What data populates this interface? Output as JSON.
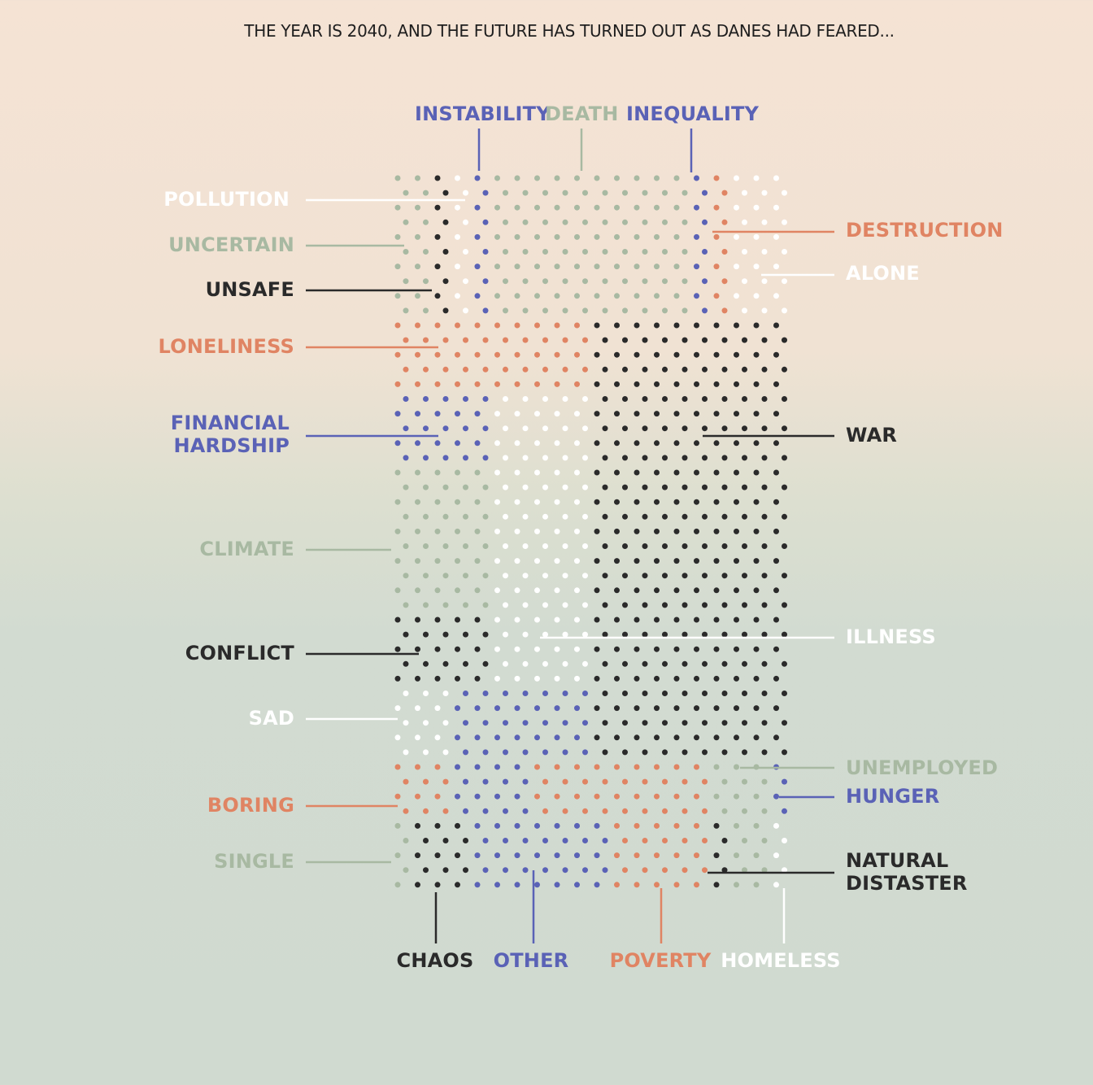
{
  "title": "THE YEAR IS 2040, AND THE FUTURE HAS TURNED OUT AS DANES HAD FEARED...",
  "colors": {
    "blue": "#5a62b6",
    "sage": "#a8b9a2",
    "dark": "#2a2a2a",
    "orange": "#e08463",
    "white": "#ffffff"
  },
  "chart_data": {
    "type": "dot-matrix",
    "title": "THE YEAR IS 2040, AND THE FUTURE HAS TURNED OUT AS DANES HAD FEARED...",
    "grid": {
      "columns": 20,
      "rows": 49,
      "unit": "dot"
    },
    "regions": [
      {
        "name": "UNCERTAIN",
        "color": "sage",
        "cols": [
          0,
          1
        ],
        "rows": [
          0,
          9
        ]
      },
      {
        "name": "UNSAFE",
        "color": "dark",
        "cols": [
          2,
          2
        ],
        "rows": [
          0,
          9
        ]
      },
      {
        "name": "POLLUTION",
        "color": "white",
        "cols": [
          3,
          3
        ],
        "rows": [
          0,
          9
        ]
      },
      {
        "name": "INSTABILITY",
        "color": "blue",
        "cols": [
          4,
          4
        ],
        "rows": [
          0,
          9
        ]
      },
      {
        "name": "DEATH",
        "color": "sage",
        "cols": [
          5,
          14
        ],
        "rows": [
          0,
          9
        ]
      },
      {
        "name": "INEQUALITY",
        "color": "blue",
        "cols": [
          15,
          15
        ],
        "rows": [
          0,
          9
        ]
      },
      {
        "name": "DESTRUCTION",
        "color": "orange",
        "cols": [
          16,
          16
        ],
        "rows": [
          0,
          9
        ]
      },
      {
        "name": "ALONE",
        "color": "white",
        "cols": [
          17,
          19
        ],
        "rows": [
          0,
          9
        ]
      },
      {
        "name": "LONELINESS",
        "color": "orange",
        "cols": [
          0,
          9
        ],
        "rows": [
          10,
          14
        ]
      },
      {
        "name": "FINANCIAL HARDSHIP",
        "color": "blue",
        "cols": [
          0,
          4
        ],
        "rows": [
          15,
          19
        ]
      },
      {
        "name": "CLIMATE",
        "color": "sage",
        "cols": [
          0,
          4
        ],
        "rows": [
          20,
          29
        ]
      },
      {
        "name": "ILLNESS",
        "color": "white",
        "cols": [
          5,
          9
        ],
        "rows": [
          15,
          34
        ]
      },
      {
        "name": "CONFLICT",
        "color": "dark",
        "cols": [
          0,
          4
        ],
        "rows": [
          30,
          34
        ]
      },
      {
        "name": "WAR",
        "color": "dark",
        "cols": [
          10,
          19
        ],
        "rows": [
          10,
          39
        ]
      },
      {
        "name": "SAD",
        "color": "white",
        "cols": [
          0,
          2
        ],
        "rows": [
          35,
          39
        ]
      },
      {
        "name": "OTHER",
        "color": "blue",
        "cols": [
          3,
          9
        ],
        "rows": [
          35,
          39
        ]
      },
      {
        "name": "BORING",
        "color": "orange",
        "cols": [
          0,
          2
        ],
        "rows": [
          40,
          43
        ]
      },
      {
        "name": "OTHER",
        "color": "blue",
        "cols": [
          3,
          6
        ],
        "rows": [
          40,
          43
        ]
      },
      {
        "name": "POVERTY",
        "color": "orange",
        "cols": [
          7,
          15
        ],
        "rows": [
          40,
          43
        ]
      },
      {
        "name": "UNEMPLOYED",
        "color": "sage",
        "cols": [
          16,
          18
        ],
        "rows": [
          40,
          43
        ]
      },
      {
        "name": "HUNGER",
        "color": "blue",
        "cols": [
          19,
          19
        ],
        "rows": [
          40,
          43
        ]
      },
      {
        "name": "SINGLE",
        "color": "sage",
        "cols": [
          0,
          0
        ],
        "rows": [
          44,
          48
        ]
      },
      {
        "name": "CHAOS",
        "color": "dark",
        "cols": [
          1,
          3
        ],
        "rows": [
          44,
          48
        ]
      },
      {
        "name": "OTHER",
        "color": "blue",
        "cols": [
          4,
          10
        ],
        "rows": [
          44,
          48
        ]
      },
      {
        "name": "POVERTY",
        "color": "orange",
        "cols": [
          11,
          15
        ],
        "rows": [
          44,
          48
        ]
      },
      {
        "name": "NATURAL DISTASTER",
        "color": "dark",
        "cols": [
          16,
          16
        ],
        "rows": [
          44,
          48
        ]
      },
      {
        "name": "UNEMPLOYED",
        "color": "sage",
        "cols": [
          17,
          18
        ],
        "rows": [
          44,
          48
        ]
      },
      {
        "name": "HOMELESS",
        "color": "white",
        "cols": [
          19,
          19
        ],
        "rows": [
          44,
          48
        ]
      }
    ],
    "annotations": [
      {
        "label": "INSTABILITY",
        "color": "blue"
      },
      {
        "label": "DEATH",
        "color": "sage"
      },
      {
        "label": "INEQUALITY",
        "color": "blue"
      },
      {
        "label": "POLLUTION",
        "color": "white"
      },
      {
        "label": "UNCERTAIN",
        "color": "sage"
      },
      {
        "label": "UNSAFE",
        "color": "dark"
      },
      {
        "label": "LONELINESS",
        "color": "orange"
      },
      {
        "label": "FINANCIAL HARDSHIP",
        "lines": [
          "FINANCIAL",
          "HARDSHIP"
        ],
        "color": "blue"
      },
      {
        "label": "CLIMATE",
        "color": "sage"
      },
      {
        "label": "CONFLICT",
        "color": "dark"
      },
      {
        "label": "SAD",
        "color": "white"
      },
      {
        "label": "BORING",
        "color": "orange"
      },
      {
        "label": "SINGLE",
        "color": "sage"
      },
      {
        "label": "DESTRUCTION",
        "color": "orange"
      },
      {
        "label": "ALONE",
        "color": "white"
      },
      {
        "label": "WAR",
        "color": "dark"
      },
      {
        "label": "ILLNESS",
        "color": "white"
      },
      {
        "label": "UNEMPLOYED",
        "color": "sage"
      },
      {
        "label": "HUNGER",
        "color": "blue"
      },
      {
        "label": "NATURAL DISTASTER",
        "lines": [
          "NATURAL",
          "DISTASTER"
        ],
        "color": "dark"
      },
      {
        "label": "CHAOS",
        "color": "dark"
      },
      {
        "label": "OTHER",
        "color": "blue"
      },
      {
        "label": "POVERTY",
        "color": "orange"
      },
      {
        "label": "HOMELESS",
        "color": "white"
      }
    ]
  }
}
